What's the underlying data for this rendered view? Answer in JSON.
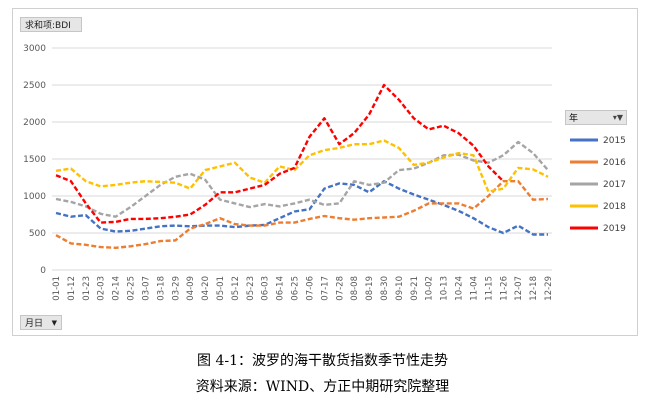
{
  "pivot": {
    "values_field": "求和项:BDI",
    "axis_field": "月日",
    "legend_field": "年"
  },
  "caption": {
    "title": "图 4-1：波罗的海干散货指数季节性走势",
    "source": "资料来源：WIND、方正中期研究院整理"
  },
  "icons": {
    "dropdown": "chevron-down-icon",
    "filter": "filter-icon"
  },
  "chart_data": {
    "type": "line",
    "title": "",
    "xlabel": "",
    "ylabel": "",
    "ylim": [
      0,
      3000
    ],
    "yticks": [
      0,
      500,
      1000,
      1500,
      2000,
      2500,
      3000
    ],
    "grid": true,
    "legend_position": "right",
    "categories": [
      "01-01",
      "01-12",
      "01-23",
      "02-03",
      "02-14",
      "02-25",
      "03-07",
      "03-18",
      "03-29",
      "04-09",
      "04-20",
      "05-01",
      "05-12",
      "05-23",
      "06-03",
      "06-14",
      "06-25",
      "07-06",
      "07-17",
      "07-28",
      "08-08",
      "08-19",
      "08-30",
      "09-10",
      "09-21",
      "10-02",
      "10-13",
      "10-24",
      "11-04",
      "11-15",
      "11-26",
      "12-07",
      "12-18",
      "12-29"
    ],
    "series": [
      {
        "name": "2015",
        "color": "#4472c4",
        "values": [
          770,
          720,
          740,
          560,
          520,
          530,
          560,
          590,
          600,
          590,
          600,
          600,
          580,
          600,
          610,
          700,
          790,
          820,
          1100,
          1170,
          1150,
          1050,
          1200,
          1100,
          1020,
          950,
          880,
          800,
          700,
          580,
          500,
          600,
          480,
          480
        ]
      },
      {
        "name": "2016",
        "color": "#ed7d31",
        "values": [
          470,
          360,
          340,
          310,
          300,
          320,
          350,
          390,
          400,
          560,
          620,
          700,
          620,
          600,
          600,
          640,
          640,
          690,
          730,
          700,
          680,
          700,
          710,
          720,
          800,
          900,
          900,
          900,
          830,
          1000,
          1200,
          1200,
          950,
          960
        ]
      },
      {
        "name": "2017",
        "color": "#a5a5a5",
        "values": [
          960,
          920,
          860,
          760,
          720,
          850,
          1000,
          1150,
          1260,
          1300,
          1220,
          950,
          900,
          850,
          890,
          860,
          900,
          950,
          880,
          900,
          1200,
          1150,
          1180,
          1350,
          1370,
          1450,
          1550,
          1560,
          1480,
          1450,
          1550,
          1730,
          1580,
          1350
        ]
      },
      {
        "name": "2018",
        "color": "#ffc000",
        "values": [
          1340,
          1370,
          1200,
          1130,
          1150,
          1180,
          1200,
          1190,
          1180,
          1100,
          1350,
          1400,
          1450,
          1250,
          1180,
          1400,
          1350,
          1550,
          1620,
          1650,
          1700,
          1700,
          1750,
          1650,
          1420,
          1450,
          1520,
          1580,
          1550,
          1060,
          1100,
          1380,
          1360,
          1260
        ]
      },
      {
        "name": "2019",
        "color": "#ff0000",
        "values": [
          1280,
          1200,
          900,
          640,
          650,
          690,
          690,
          700,
          720,
          750,
          880,
          1050,
          1050,
          1100,
          1150,
          1300,
          1380,
          1800,
          2050,
          1700,
          1850,
          2100,
          2500,
          2300,
          2050,
          1900,
          1950,
          1850,
          1680,
          1400,
          1200,
          null,
          null,
          null
        ]
      }
    ]
  }
}
